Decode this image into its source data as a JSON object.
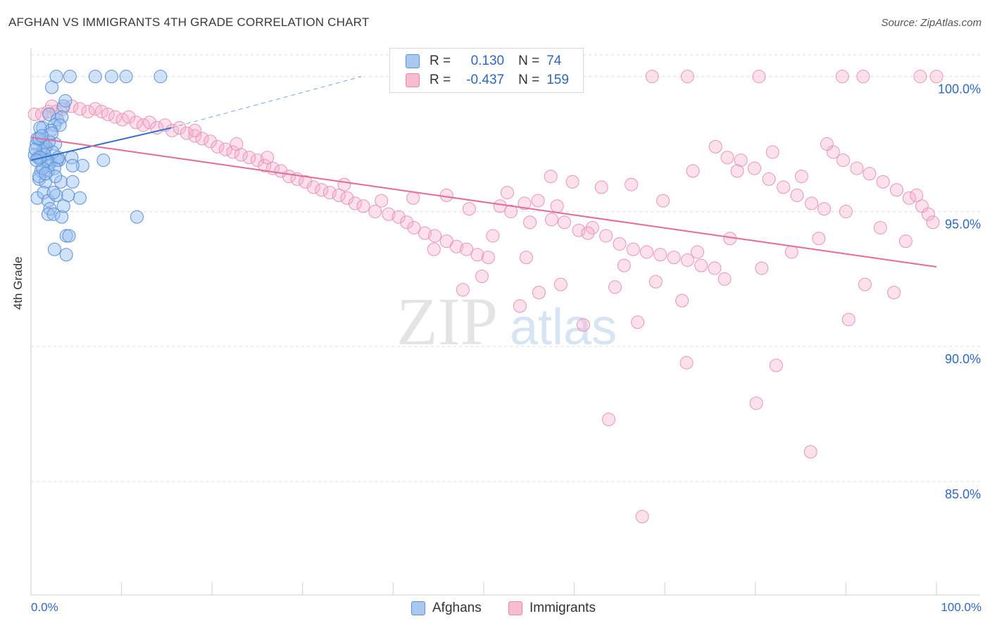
{
  "title": "AFGHAN VS IMMIGRANTS 4TH GRADE CORRELATION CHART",
  "source": "Source: ZipAtlas.com",
  "watermark": {
    "zip": "ZIP",
    "atlas": "atlas"
  },
  "stats": {
    "r_label": "R =",
    "n_label": "N =",
    "rows": [
      {
        "series": "Afghans",
        "r": "0.130",
        "n": "74"
      },
      {
        "series": "Immigrants",
        "r": "-0.437",
        "n": "159"
      }
    ]
  },
  "legend": [
    {
      "name": "Afghans",
      "fill": "#aac9f0",
      "stroke": "#5b8fd6"
    },
    {
      "name": "Immigrants",
      "fill": "#f7bcd0",
      "stroke": "#e48aaa"
    }
  ],
  "colors": {
    "afghan_line": "#2c6fd1",
    "immigrant_line": "#e56a98",
    "axis_text": "#2e68c2",
    "grid": "#dddddd"
  },
  "chart_data": {
    "type": "scatter",
    "xlabel": "",
    "ylabel": "4th Grade",
    "xlim": [
      0,
      100
    ],
    "ylim": [
      80.8,
      100.8
    ],
    "x_tick_labels": [
      "0.0%",
      "100.0%"
    ],
    "y_ticks": [
      85.0,
      90.0,
      95.0,
      100.0
    ],
    "y_tick_labels": [
      "85.0%",
      "90.0%",
      "95.0%",
      "100.0%"
    ],
    "grid": true,
    "legend_position": "bottom-center",
    "series": [
      {
        "name": "Afghans",
        "trend": {
          "x": [
            0,
            15.5
          ],
          "y": [
            96.9,
            98.1
          ],
          "dashed_to": {
            "x": 36.5,
            "y": 100.0
          }
        },
        "points": [
          [
            2.8,
            100
          ],
          [
            4.3,
            100
          ],
          [
            7.1,
            100
          ],
          [
            8.9,
            100
          ],
          [
            10.5,
            100
          ],
          [
            14.3,
            100
          ],
          [
            2.3,
            99.6
          ],
          [
            3.6,
            98.9
          ],
          [
            2.0,
            98.6
          ],
          [
            2.9,
            98.4
          ],
          [
            3.4,
            98.5
          ],
          [
            1.3,
            98.1
          ],
          [
            2.6,
            98.2
          ],
          [
            3.2,
            98.2
          ],
          [
            1.2,
            97.6
          ],
          [
            1.6,
            97.4
          ],
          [
            0.6,
            97.5
          ],
          [
            0.7,
            97.7
          ],
          [
            1.4,
            97.3
          ],
          [
            1.7,
            97.4
          ],
          [
            2.7,
            97.5
          ],
          [
            0.4,
            97.1
          ],
          [
            0.8,
            97.0
          ],
          [
            1.1,
            96.9
          ],
          [
            2.1,
            96.8
          ],
          [
            3.1,
            96.9
          ],
          [
            4.5,
            97.0
          ],
          [
            5.7,
            96.7
          ],
          [
            8.0,
            96.9
          ],
          [
            1.9,
            96.7
          ],
          [
            1.1,
            96.5
          ],
          [
            1.9,
            96.5
          ],
          [
            2.9,
            96.9
          ],
          [
            4.6,
            96.7
          ],
          [
            0.9,
            96.2
          ],
          [
            1.6,
            96.1
          ],
          [
            3.3,
            96.1
          ],
          [
            0.7,
            95.5
          ],
          [
            1.4,
            95.7
          ],
          [
            1.9,
            95.4
          ],
          [
            2.8,
            95.6
          ],
          [
            5.4,
            95.5
          ],
          [
            2.1,
            95.1
          ],
          [
            1.9,
            94.9
          ],
          [
            2.5,
            94.9
          ],
          [
            3.4,
            94.8
          ],
          [
            11.7,
            94.8
          ],
          [
            3.9,
            94.1
          ],
          [
            4.2,
            94.1
          ],
          [
            2.6,
            93.6
          ],
          [
            3.9,
            93.4
          ],
          [
            2.2,
            98.0
          ],
          [
            2.4,
            97.2
          ],
          [
            0.9,
            96.3
          ],
          [
            1.5,
            97.1
          ],
          [
            1.0,
            98.1
          ],
          [
            3.0,
            97.0
          ],
          [
            1.8,
            96.9
          ],
          [
            4.1,
            95.6
          ],
          [
            2.6,
            96.6
          ],
          [
            0.5,
            97.3
          ],
          [
            2.0,
            97.6
          ],
          [
            1.3,
            96.6
          ],
          [
            0.9,
            97.7
          ],
          [
            4.6,
            96.1
          ],
          [
            2.7,
            96.3
          ],
          [
            2.3,
            97.9
          ],
          [
            1.0,
            97.0
          ],
          [
            3.8,
            99.1
          ],
          [
            1.6,
            96.4
          ],
          [
            1.2,
            97.8
          ],
          [
            0.6,
            96.9
          ],
          [
            2.5,
            95.7
          ],
          [
            3.6,
            95.2
          ]
        ]
      },
      {
        "name": "Immigrants",
        "trend": {
          "x": [
            0,
            100
          ],
          "y": [
            97.75,
            92.95
          ]
        },
        "points": [
          [
            0.4,
            98.6
          ],
          [
            1.2,
            98.6
          ],
          [
            1.9,
            98.7
          ],
          [
            2.3,
            98.9
          ],
          [
            2.8,
            98.7
          ],
          [
            3.5,
            98.8
          ],
          [
            4.5,
            98.9
          ],
          [
            5.4,
            98.8
          ],
          [
            6.3,
            98.7
          ],
          [
            7.1,
            98.8
          ],
          [
            7.8,
            98.7
          ],
          [
            8.5,
            98.6
          ],
          [
            9.3,
            98.5
          ],
          [
            10.1,
            98.4
          ],
          [
            10.8,
            98.5
          ],
          [
            11.6,
            98.3
          ],
          [
            12.4,
            98.2
          ],
          [
            13.1,
            98.3
          ],
          [
            13.9,
            98.1
          ],
          [
            14.8,
            98.2
          ],
          [
            15.6,
            98.0
          ],
          [
            16.4,
            98.1
          ],
          [
            17.2,
            97.9
          ],
          [
            18.1,
            97.8
          ],
          [
            18.9,
            97.7
          ],
          [
            19.8,
            97.6
          ],
          [
            20.6,
            97.4
          ],
          [
            21.5,
            97.3
          ],
          [
            22.3,
            97.2
          ],
          [
            23.2,
            97.1
          ],
          [
            24.1,
            97.0
          ],
          [
            25.0,
            96.9
          ],
          [
            25.8,
            96.7
          ],
          [
            26.7,
            96.6
          ],
          [
            27.6,
            96.5
          ],
          [
            28.5,
            96.3
          ],
          [
            29.4,
            96.2
          ],
          [
            30.3,
            96.1
          ],
          [
            31.2,
            95.9
          ],
          [
            32.1,
            95.8
          ],
          [
            33.0,
            95.7
          ],
          [
            34.0,
            95.6
          ],
          [
            34.9,
            95.5
          ],
          [
            35.8,
            95.3
          ],
          [
            36.7,
            95.2
          ],
          [
            38.0,
            95.0
          ],
          [
            39.5,
            94.9
          ],
          [
            40.6,
            94.8
          ],
          [
            41.5,
            94.6
          ],
          [
            42.3,
            94.4
          ],
          [
            43.5,
            94.2
          ],
          [
            44.6,
            94.1
          ],
          [
            45.9,
            93.9
          ],
          [
            47.0,
            93.7
          ],
          [
            48.1,
            93.6
          ],
          [
            49.3,
            93.4
          ],
          [
            50.5,
            93.3
          ],
          [
            51.8,
            95.2
          ],
          [
            53.0,
            95.0
          ],
          [
            54.5,
            95.3
          ],
          [
            56.0,
            95.4
          ],
          [
            57.5,
            94.7
          ],
          [
            58.9,
            94.6
          ],
          [
            60.5,
            94.3
          ],
          [
            62.0,
            94.4
          ],
          [
            63.5,
            94.1
          ],
          [
            65.0,
            93.8
          ],
          [
            66.5,
            93.6
          ],
          [
            68.0,
            93.5
          ],
          [
            69.5,
            93.4
          ],
          [
            71.0,
            93.3
          ],
          [
            72.5,
            93.2
          ],
          [
            74.0,
            93.0
          ],
          [
            75.5,
            92.9
          ],
          [
            76.9,
            97.0
          ],
          [
            78.4,
            96.9
          ],
          [
            79.9,
            96.6
          ],
          [
            81.5,
            96.2
          ],
          [
            83.1,
            95.9
          ],
          [
            84.6,
            95.6
          ],
          [
            86.2,
            95.3
          ],
          [
            87.6,
            95.1
          ],
          [
            88.6,
            97.2
          ],
          [
            89.7,
            96.9
          ],
          [
            91.2,
            96.6
          ],
          [
            92.6,
            96.4
          ],
          [
            94.1,
            96.1
          ],
          [
            95.6,
            95.8
          ],
          [
            97.0,
            95.5
          ],
          [
            98.4,
            95.2
          ],
          [
            99.1,
            94.9
          ],
          [
            99.6,
            94.6
          ],
          [
            100,
            100
          ],
          [
            91.9,
            100
          ],
          [
            89.6,
            100
          ],
          [
            80.4,
            100
          ],
          [
            98.2,
            100
          ],
          [
            72.5,
            100
          ],
          [
            68.6,
            100
          ],
          [
            18.1,
            98.0
          ],
          [
            22.7,
            97.5
          ],
          [
            26.1,
            97.0
          ],
          [
            34.6,
            96.0
          ],
          [
            38.7,
            95.4
          ],
          [
            42.2,
            95.5
          ],
          [
            45.9,
            95.6
          ],
          [
            48.4,
            95.1
          ],
          [
            52.6,
            95.7
          ],
          [
            55.1,
            94.6
          ],
          [
            57.4,
            96.3
          ],
          [
            59.8,
            96.1
          ],
          [
            63.0,
            95.9
          ],
          [
            66.3,
            96.0
          ],
          [
            69.8,
            95.4
          ],
          [
            73.1,
            96.5
          ],
          [
            75.6,
            97.4
          ],
          [
            78.0,
            96.5
          ],
          [
            81.9,
            97.2
          ],
          [
            85.1,
            96.3
          ],
          [
            87.9,
            97.5
          ],
          [
            49.8,
            92.6
          ],
          [
            54.0,
            91.5
          ],
          [
            56.1,
            92.0
          ],
          [
            58.5,
            92.3
          ],
          [
            61.0,
            90.8
          ],
          [
            64.5,
            92.2
          ],
          [
            67.0,
            90.9
          ],
          [
            72.4,
            89.4
          ],
          [
            71.9,
            91.7
          ],
          [
            76.6,
            92.5
          ],
          [
            82.3,
            89.3
          ],
          [
            63.8,
            87.3
          ],
          [
            80.1,
            87.9
          ],
          [
            86.1,
            86.1
          ],
          [
            90.3,
            91.0
          ],
          [
            67.5,
            83.7
          ],
          [
            92.1,
            92.3
          ],
          [
            95.3,
            92.0
          ],
          [
            47.7,
            92.1
          ],
          [
            44.5,
            93.6
          ],
          [
            51.0,
            94.1
          ],
          [
            54.7,
            93.3
          ],
          [
            58.1,
            95.2
          ],
          [
            61.5,
            94.2
          ],
          [
            65.5,
            93.0
          ],
          [
            69.0,
            92.4
          ],
          [
            73.6,
            93.5
          ],
          [
            77.2,
            94.0
          ],
          [
            80.7,
            92.9
          ],
          [
            84.0,
            93.5
          ],
          [
            87.0,
            94.0
          ],
          [
            90.0,
            95.0
          ],
          [
            93.8,
            94.4
          ],
          [
            96.6,
            93.9
          ],
          [
            97.8,
            95.6
          ]
        ]
      }
    ]
  }
}
